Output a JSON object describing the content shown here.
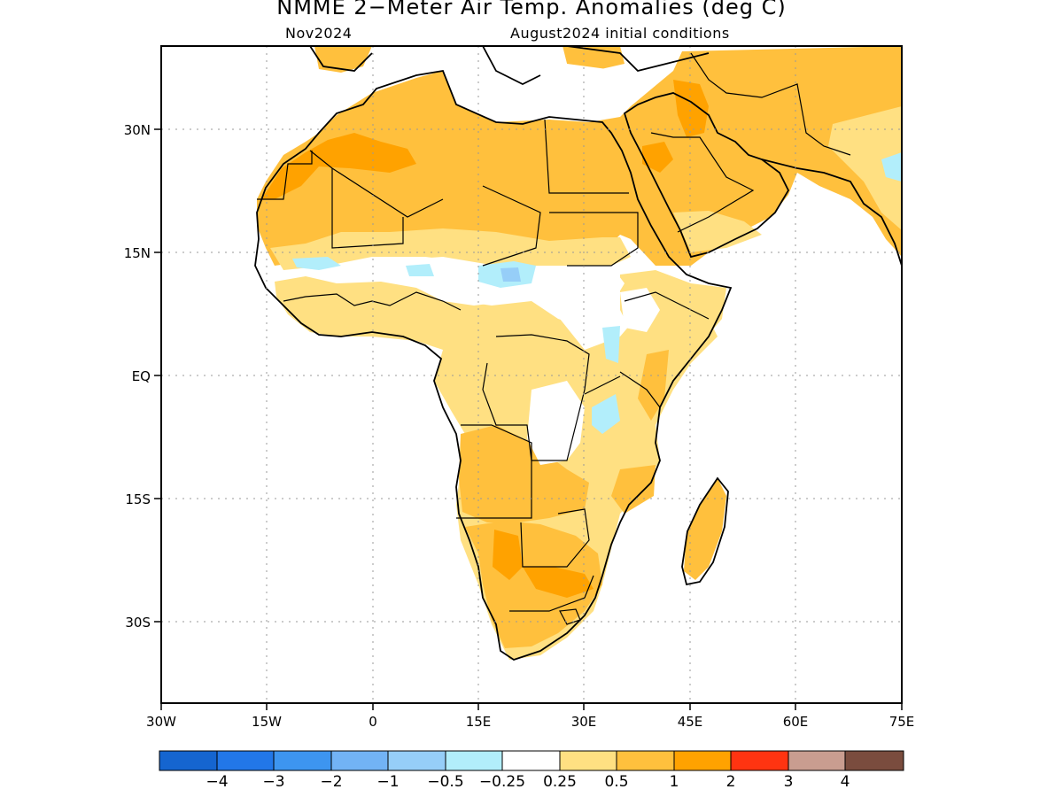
{
  "title": "NMME 2−Meter Air Temp. Anomalies (deg C)",
  "subtitle_left": "Nov2024",
  "subtitle_right": "August2024 initial conditions",
  "map": {
    "lon_range": [
      -30,
      75
    ],
    "lat_range": [
      -40,
      40
    ],
    "lon_ticks": [
      "30W",
      "15W",
      "0",
      "15E",
      "30E",
      "45E",
      "60E",
      "75E"
    ],
    "lat_ticks": [
      "30N",
      "15N",
      "EQ",
      "15S",
      "30S"
    ],
    "grid": "dotted"
  },
  "colorbar": {
    "colors": [
      "#1565d0",
      "#2277e8",
      "#3d95f0",
      "#72b3f5",
      "#96cef8",
      "#b2eefb",
      "#ffffff",
      "#ffe082",
      "#ffc03d",
      "#ffa200",
      "#ff3411",
      "#c99d90",
      "#7a4c3e"
    ],
    "labels": [
      "−4",
      "−3",
      "−2",
      "−1",
      "−0.5",
      "−0.25",
      "0.25",
      "0.5",
      "1",
      "2",
      "3",
      "4"
    ]
  }
}
